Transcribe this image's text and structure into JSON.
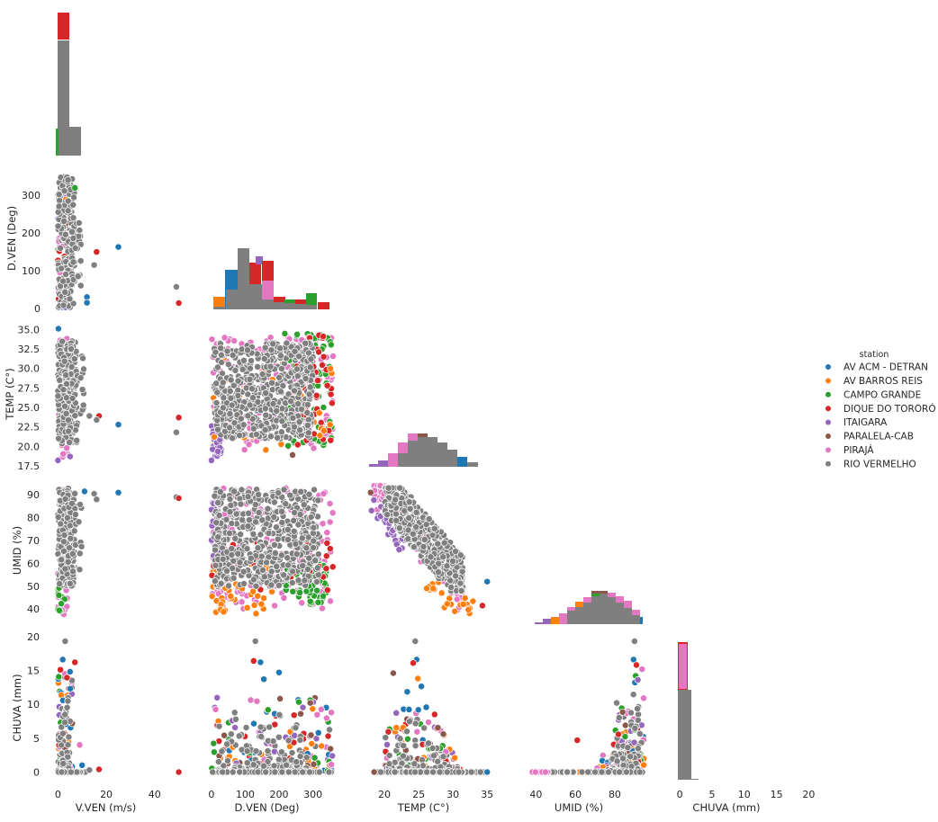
{
  "chart_data": {
    "type": "scatter",
    "variables": [
      "V.VEN (m/s)",
      "D.VEN (Deg)",
      "TEMP (C°)",
      "UMID (%)",
      "CHUVA (mm)"
    ],
    "legend": {
      "title": "station",
      "placement": "center-right",
      "entries": [
        {
          "name": "AV ACM - DETRAN",
          "color": "#1f77b4"
        },
        {
          "name": "AV BARROS REIS",
          "color": "#ff7f0e"
        },
        {
          "name": "CAMPO GRANDE",
          "color": "#2ca02c"
        },
        {
          "name": "DIQUE DO TORORÓ",
          "color": "#d62728"
        },
        {
          "name": "ITAIGARA",
          "color": "#9467bd"
        },
        {
          "name": "PARALELA-CAB",
          "color": "#8c564b"
        },
        {
          "name": "PIRAJÁ",
          "color": "#e377c2"
        },
        {
          "name": "RIO VERMELHO",
          "color": "#7f7f7f"
        }
      ]
    },
    "axes": {
      "V.VEN (m/s)": {
        "ticks": [
          "0",
          "20",
          "40"
        ],
        "range": [
          -2,
          52
        ]
      },
      "D.VEN (Deg)": {
        "ticks": [
          "0",
          "100",
          "200",
          "300"
        ],
        "range": [
          -5,
          365
        ]
      },
      "TEMP (C°)": {
        "ticks": [
          "20",
          "25",
          "30",
          "35"
        ],
        "yticks": [
          "17.5",
          "20.0",
          "22.5",
          "25.0",
          "27.5",
          "30.0",
          "32.5",
          "35.0"
        ],
        "range": [
          17.5,
          35.5
        ]
      },
      "UMID (%)": {
        "ticks": [
          "40",
          "60",
          "80"
        ],
        "yticks": [
          "40",
          "50",
          "60",
          "70",
          "80",
          "90"
        ],
        "range": [
          33,
          96
        ]
      },
      "CHUVA (mm)": {
        "ticks": [
          "0",
          "5",
          "10",
          "15",
          "20"
        ],
        "range": [
          -1,
          20.5
        ]
      }
    },
    "outliers": {
      "vven_dven": [
        {
          "x": 25,
          "y": 163,
          "station": "AV ACM - DETRAN"
        },
        {
          "x": 49,
          "y": 57,
          "station": "RIO VERMELHO"
        },
        {
          "x": 50,
          "y": 14,
          "station": "DIQUE DO TORORÓ"
        }
      ],
      "vven_temp": [
        {
          "x": 25,
          "y": 22.8,
          "station": "AV ACM - DETRAN"
        },
        {
          "x": 49,
          "y": 21.8,
          "station": "RIO VERMELHO"
        },
        {
          "x": 50,
          "y": 23.7,
          "station": "DIQUE DO TORORÓ"
        }
      ],
      "vven_umid": [
        {
          "x": 25,
          "y": 91,
          "station": "AV ACM - DETRAN"
        },
        {
          "x": 49,
          "y": 89,
          "station": "RIO VERMELHO"
        },
        {
          "x": 50,
          "y": 88.5,
          "station": "DIQUE DO TORORÓ"
        }
      ],
      "vven_chuva": [
        {
          "x": 50,
          "y": 0,
          "station": "DIQUE DO TORORÓ"
        },
        {
          "x": 17,
          "y": 0.4,
          "station": "DIQUE DO TORORÓ"
        },
        {
          "x": 13,
          "y": 0.3,
          "station": "RIO VERMELHO"
        }
      ]
    },
    "grid": false
  }
}
